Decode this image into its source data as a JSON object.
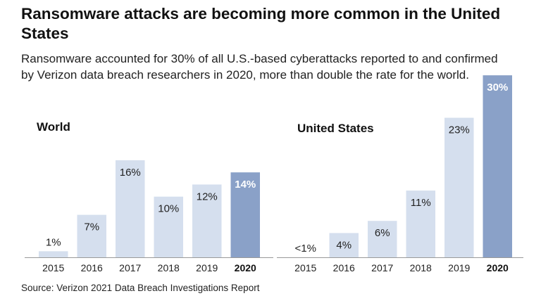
{
  "title": "Ransomware attacks are becoming more common in the United States",
  "subtitle": "Ransomware accounted for 30% of all U.S.-based cyberattacks reported to and confirmed by Verizon data breach researchers in 2020, more than double the rate for the world.",
  "source": "Source: Verizon 2021 Data Breach Investigations Report",
  "colors": {
    "bar": "#d5dfee",
    "highlight": "#8aa1c8",
    "axis": "#999999"
  },
  "chart_data": [
    {
      "type": "bar",
      "title": "World",
      "categories": [
        "2015",
        "2016",
        "2017",
        "2018",
        "2019",
        "2020"
      ],
      "values": [
        1,
        7,
        16,
        10,
        12,
        14
      ],
      "labels": [
        "1%",
        "7%",
        "16%",
        "10%",
        "12%",
        "14%"
      ],
      "highlight": "2020",
      "ylim": [
        0,
        30
      ],
      "grid": false
    },
    {
      "type": "bar",
      "title": "United States",
      "categories": [
        "2015",
        "2016",
        "2017",
        "2018",
        "2019",
        "2020"
      ],
      "values": [
        0,
        4,
        6,
        11,
        23,
        30
      ],
      "labels": [
        "<1%",
        "4%",
        "6%",
        "11%",
        "23%",
        "30%"
      ],
      "highlight": "2020",
      "ylim": [
        0,
        30
      ],
      "grid": false
    }
  ]
}
